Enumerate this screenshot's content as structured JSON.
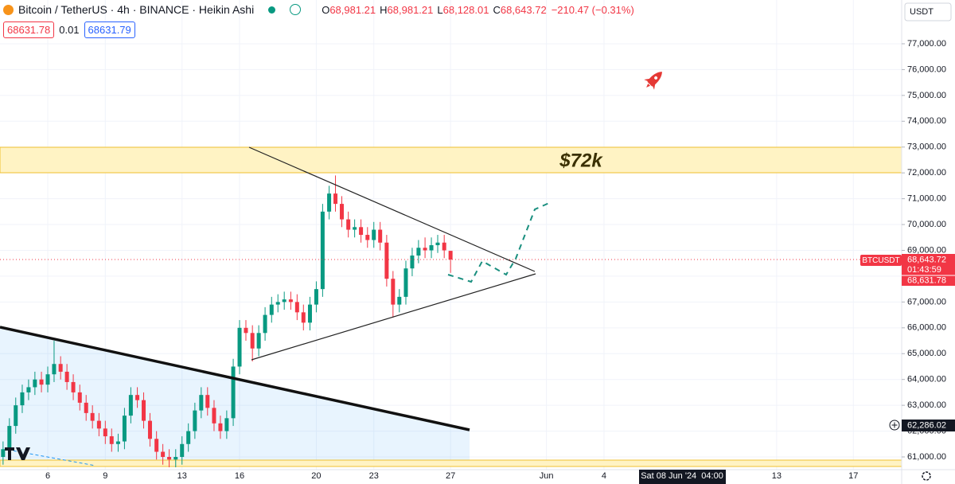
{
  "header": {
    "symbol": "Bitcoin / TetherUS · 4h · BINANCE · Heikin Ashi",
    "ohlc": [
      {
        "label": "O",
        "value": "68,981.21"
      },
      {
        "label": "H",
        "value": "68,981.21"
      },
      {
        "label": "L",
        "value": "68,128.01"
      },
      {
        "label": "C",
        "value": "68,643.72"
      }
    ],
    "change": "−210.47 (−0.31%)",
    "bid": "68631.78",
    "spread": "0.01",
    "ask": "68631.79",
    "currency": "USDT"
  },
  "price_tags": {
    "symbol": "BTCUSDT",
    "last": "68,643.72",
    "countdown": "01:43:59",
    "bid": "68,631.78",
    "crosshair": "62,286.02",
    "time": "Sat 08 Jun '24  04:00"
  },
  "chart_data": {
    "type": "candlestick",
    "up_color": "#089981",
    "down_color": "#f23645",
    "grid": true,
    "annotations": [
      "$72k"
    ],
    "x": [
      3.67,
      4,
      4.33,
      4.67,
      5,
      5.33,
      5.67,
      6,
      6.33,
      6.67,
      7,
      7.33,
      7.67,
      8,
      8.33,
      8.67,
      9,
      9.33,
      9.67,
      10,
      10.33,
      10.67,
      11,
      11.33,
      11.67,
      12,
      12.33,
      12.67,
      13,
      13.33,
      13.67,
      14,
      14.33,
      14.67,
      15,
      15.33,
      15.67,
      16,
      16.33,
      16.67,
      17,
      17.33,
      17.67,
      18,
      18.33,
      18.67,
      19,
      19.33,
      19.67,
      20,
      20.33,
      20.67,
      21,
      21.33,
      21.67,
      22,
      22.33,
      22.67,
      23,
      23.33,
      23.67,
      24,
      24.33,
      24.67,
      25,
      25.33,
      25.67,
      26,
      26.33,
      26.67,
      27
    ],
    "open": [
      61000,
      61300,
      62200,
      63000,
      63500,
      63700,
      64000,
      63800,
      64200,
      64600,
      64300,
      63900,
      63500,
      63100,
      62700,
      62400,
      62100,
      61800,
      61500,
      61600,
      62600,
      63400,
      63200,
      62400,
      61700,
      61200,
      61000,
      60900,
      61000,
      61500,
      62000,
      62800,
      63400,
      62900,
      62300,
      62000,
      62500,
      64500,
      66000,
      65800,
      65200,
      65800,
      66500,
      66900,
      67000,
      67100,
      67000,
      66600,
      66200,
      66900,
      67500,
      70500,
      71200,
      70800,
      70200,
      69800,
      69900,
      69600,
      69400,
      69800,
      69300,
      67900,
      66900,
      67200,
      68300,
      68800,
      69100,
      69000,
      69200,
      69300,
      68981.21
    ],
    "high": [
      61600,
      62500,
      63300,
      63800,
      64000,
      64300,
      64300,
      64500,
      65500,
      64900,
      64600,
      64200,
      63800,
      63400,
      63000,
      62700,
      62400,
      62100,
      61900,
      62900,
      63700,
      63700,
      63500,
      62700,
      62000,
      61500,
      61300,
      61300,
      61800,
      62300,
      63100,
      63700,
      63700,
      63200,
      62600,
      62800,
      64800,
      66300,
      66300,
      66100,
      66100,
      66800,
      67200,
      67300,
      67400,
      67400,
      67300,
      66900,
      67200,
      67800,
      70800,
      71500,
      71900,
      71100,
      70500,
      70200,
      70200,
      69900,
      70100,
      70100,
      69600,
      68200,
      67500,
      68600,
      69100,
      69400,
      69500,
      69500,
      69600,
      69600,
      68981.21
    ],
    "low": [
      60700,
      61000,
      61900,
      62700,
      63200,
      63400,
      63500,
      63500,
      63900,
      64000,
      63600,
      63200,
      62800,
      62400,
      62100,
      61800,
      61500,
      61200,
      61200,
      61300,
      62300,
      62900,
      62100,
      61400,
      60900,
      60700,
      60600,
      60600,
      60700,
      61200,
      61700,
      62500,
      62600,
      62000,
      61700,
      61700,
      62200,
      64200,
      65500,
      64700,
      64900,
      65500,
      66200,
      66600,
      66700,
      66700,
      66300,
      65900,
      65900,
      66600,
      67200,
      70200,
      70500,
      69900,
      69500,
      69500,
      69300,
      69100,
      69100,
      69000,
      67600,
      66400,
      66600,
      66900,
      68000,
      68500,
      68700,
      68700,
      68900,
      68700,
      68128.01
    ],
    "close": [
      61300,
      62200,
      63000,
      63500,
      63700,
      64000,
      63800,
      64200,
      64600,
      64300,
      63900,
      63500,
      63100,
      62700,
      62400,
      62100,
      61800,
      61500,
      61600,
      62600,
      63400,
      63200,
      62400,
      61700,
      61200,
      61000,
      60900,
      61000,
      61500,
      62000,
      62800,
      63400,
      62900,
      62300,
      62000,
      62500,
      64500,
      66000,
      65800,
      65200,
      65800,
      66500,
      66900,
      67000,
      67100,
      67000,
      66600,
      66200,
      66900,
      67500,
      70500,
      71200,
      70800,
      70200,
      69800,
      69900,
      69600,
      69400,
      69800,
      69300,
      67900,
      66900,
      67200,
      68300,
      68800,
      69100,
      69000,
      69200,
      69300,
      69000,
      68643.72
    ],
    "xlim": [
      3.51,
      50.52
    ],
    "xticks": [
      6,
      9,
      13,
      16,
      20,
      23,
      27,
      {
        "value": 32,
        "label": "Jun"
      },
      {
        "value": 35,
        "label": "4"
      },
      {
        "value": 44,
        "label": "13"
      },
      {
        "value": 48,
        "label": "17"
      }
    ],
    "ylim": [
      60507,
      78695
    ],
    "yticks": [
      {
        "value": 61000,
        "label": "61,000.00"
      },
      {
        "value": 62000,
        "label": "62,000.00"
      },
      {
        "value": 63000,
        "label": "63,000.00"
      },
      {
        "value": 64000,
        "label": "64,000.00"
      },
      {
        "value": 65000,
        "label": "65,000.00"
      },
      {
        "value": 66000,
        "label": "66,000.00"
      },
      {
        "value": 67000,
        "label": "67,000.00"
      },
      {
        "value": 68000,
        "label": "68,000.00"
      },
      {
        "value": 69000,
        "label": "69,000.00"
      },
      {
        "value": 70000,
        "label": "70,000.00"
      },
      {
        "value": 71000,
        "label": "71,000.00"
      },
      {
        "value": 72000,
        "label": "72,000.00"
      },
      {
        "value": 73000,
        "label": "73,000.00"
      },
      {
        "value": 74000,
        "label": "74,000.00"
      },
      {
        "value": 75000,
        "label": "75,000.00"
      },
      {
        "value": 76000,
        "label": "76,000.00"
      },
      {
        "value": 77000,
        "label": "77,000.00"
      }
    ]
  }
}
